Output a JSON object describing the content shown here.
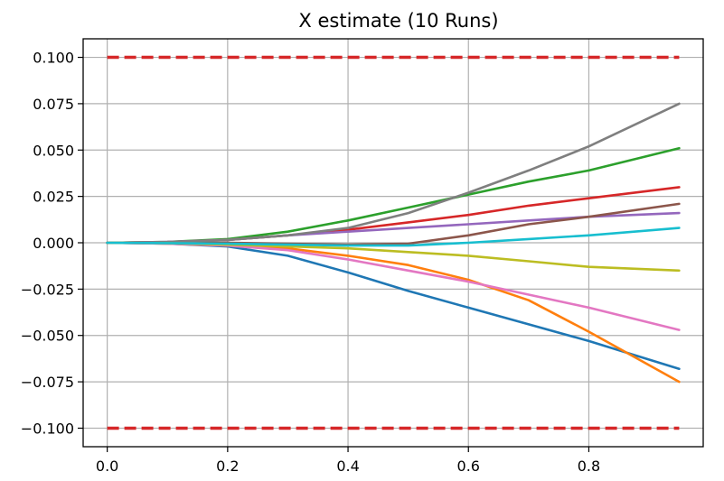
{
  "chart_data": {
    "type": "line",
    "title": "X estimate (10 Runs)",
    "xlabel": "",
    "ylabel": "",
    "xlim": [
      -0.04,
      0.99
    ],
    "ylim": [
      -0.11,
      0.11
    ],
    "x_ticks": [
      0.0,
      0.2,
      0.4,
      0.6,
      0.8
    ],
    "x_tick_labels": [
      "0.0",
      "0.2",
      "0.4",
      "0.6",
      "0.8"
    ],
    "y_ticks": [
      0.1,
      0.075,
      0.05,
      0.025,
      0.0,
      -0.025,
      -0.05,
      -0.075,
      -0.1
    ],
    "y_tick_labels": [
      "0.100",
      "0.075",
      "0.050",
      "0.025",
      "0.000",
      "−0.025",
      "−0.050",
      "−0.075",
      "−0.100"
    ],
    "grid": true,
    "x": [
      0.0,
      0.1,
      0.2,
      0.3,
      0.4,
      0.5,
      0.6,
      0.7,
      0.8,
      0.95
    ],
    "series": [
      {
        "color": "#1f77b4",
        "values": [
          0.0,
          -0.0005,
          -0.002,
          -0.007,
          -0.016,
          -0.026,
          -0.035,
          -0.044,
          -0.053,
          -0.068
        ]
      },
      {
        "color": "#ff7f0e",
        "values": [
          0.0,
          -0.0005,
          -0.0015,
          -0.003,
          -0.007,
          -0.012,
          -0.02,
          -0.031,
          -0.048,
          -0.075
        ]
      },
      {
        "color": "#2ca02c",
        "values": [
          0.0,
          0.0005,
          0.002,
          0.006,
          0.012,
          0.019,
          0.026,
          0.033,
          0.039,
          0.051
        ]
      },
      {
        "color": "#d62728",
        "values": [
          0.0,
          0.0004,
          0.0015,
          0.004,
          0.007,
          0.011,
          0.015,
          0.02,
          0.024,
          0.03
        ]
      },
      {
        "color": "#9467bd",
        "values": [
          0.0,
          0.0005,
          0.0015,
          0.004,
          0.006,
          0.008,
          0.01,
          0.012,
          0.014,
          0.016
        ]
      },
      {
        "color": "#8c564b",
        "values": [
          0.0,
          0.0,
          0.0,
          -0.0005,
          -0.001,
          -0.0005,
          0.004,
          0.01,
          0.014,
          0.021
        ]
      },
      {
        "color": "#e377c2",
        "values": [
          0.0,
          -0.0005,
          -0.0015,
          -0.004,
          -0.009,
          -0.015,
          -0.021,
          -0.028,
          -0.035,
          -0.047
        ]
      },
      {
        "color": "#7f7f7f",
        "values": [
          0.0,
          0.0004,
          0.0015,
          0.004,
          0.008,
          0.016,
          0.027,
          0.039,
          0.052,
          0.075
        ]
      },
      {
        "color": "#bcbd22",
        "values": [
          0.0,
          -0.0002,
          -0.001,
          -0.002,
          -0.003,
          -0.005,
          -0.007,
          -0.01,
          -0.013,
          -0.015
        ]
      },
      {
        "color": "#17becf",
        "values": [
          0.0,
          -0.0002,
          -0.0005,
          -0.001,
          -0.0015,
          -0.0015,
          0.0,
          0.002,
          0.004,
          0.008
        ]
      }
    ],
    "bounds": [
      {
        "color": "#d62728",
        "style": "dashed",
        "x": [
          0.0,
          0.95
        ],
        "values": [
          0.1,
          0.1
        ]
      },
      {
        "color": "#d62728",
        "style": "dashed",
        "x": [
          0.0,
          0.95
        ],
        "values": [
          -0.1,
          -0.1
        ]
      }
    ]
  }
}
